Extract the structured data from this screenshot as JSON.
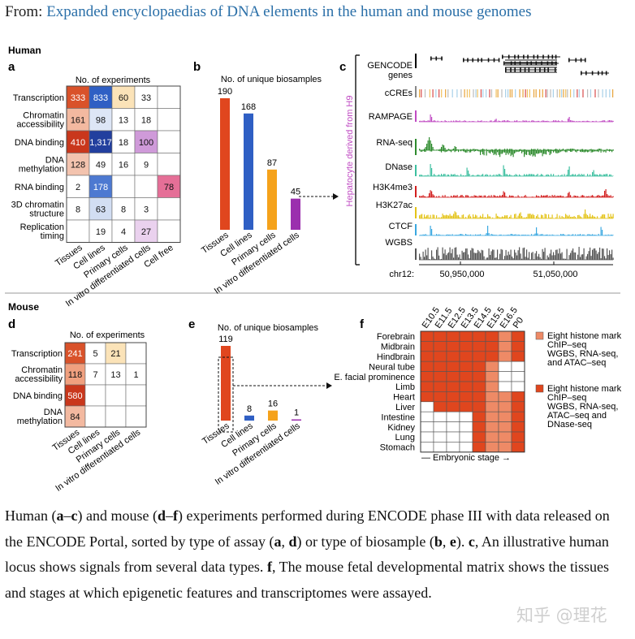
{
  "header": {
    "prefix": "From: ",
    "link_text": "Expanded encyclopaedias of DNA elements in the human and mouse genomes"
  },
  "sections": {
    "human": "Human",
    "mouse": "Mouse"
  },
  "panel_letters": {
    "a": "a",
    "b": "b",
    "c": "c",
    "d": "d",
    "e": "e",
    "f": "f"
  },
  "panel_a": {
    "title": "No. of experiments",
    "rows": [
      "Transcription",
      "Chromatin accessibility",
      "DNA binding",
      "DNA methylation",
      "RNA binding",
      "3D chromatin structure",
      "Replication timing"
    ],
    "cols": [
      "Tissues",
      "Cell lines",
      "Primary cells",
      "In vitro differentiated cells",
      "Cell free"
    ],
    "cells": [
      [
        "333",
        "833",
        "60",
        "33",
        ""
      ],
      [
        "161",
        "98",
        "13",
        "18",
        ""
      ],
      [
        "410",
        "1,317",
        "18",
        "100",
        ""
      ],
      [
        "128",
        "49",
        "16",
        "9",
        ""
      ],
      [
        "2",
        "178",
        "",
        "",
        "78"
      ],
      [
        "8",
        "63",
        "8",
        "3",
        ""
      ],
      [
        "",
        "19",
        "4",
        "27",
        ""
      ]
    ],
    "colors": [
      [
        "#d9522a",
        "#2f5fc4",
        "#fbe3b8",
        "#ffffff",
        "#ffffff"
      ],
      [
        "#f3b9a0",
        "#dde6f6",
        "#ffffff",
        "#ffffff",
        "#ffffff"
      ],
      [
        "#c9371c",
        "#223f9e",
        "#ffffff",
        "#cf9ad9",
        "#ffffff"
      ],
      [
        "#f3c3ae",
        "#ffffff",
        "#ffffff",
        "#ffffff",
        "#ffffff"
      ],
      [
        "#ffffff",
        "#4d79d1",
        "#ffffff",
        "#ffffff",
        "#e56f97"
      ],
      [
        "#ffffff",
        "#d2def3",
        "#ffffff",
        "#ffffff",
        "#ffffff"
      ],
      [
        "#ffffff",
        "#ffffff",
        "#ffffff",
        "#ead1ee",
        "#ffffff"
      ]
    ]
  },
  "panel_b": {
    "chart_data": {
      "type": "bar",
      "title": "No. of unique biosamples",
      "categories": [
        "Tissues",
        "Cell lines",
        "Primary cells",
        "In vitro differentiated cells"
      ],
      "values": [
        190,
        168,
        87,
        45
      ],
      "colors": [
        "#e0461e",
        "#2f5fc4",
        "#f5a21b",
        "#9b2fae"
      ],
      "ylim": [
        0,
        190
      ]
    }
  },
  "panel_c": {
    "track_labels": [
      "GENCODE genes",
      "cCREs",
      "RAMPAGE",
      "RNA-seq",
      "DNase",
      "H3K4me3",
      "H3K27ac",
      "CTCF",
      "WGBS"
    ],
    "track_colors": [
      "#000000",
      "#888888",
      "#c04bc3",
      "#2e8b2e",
      "#3cbf9f",
      "#d21f1f",
      "#e3c318",
      "#3aa8e0",
      "#555555"
    ],
    "side_label": "Hepatocyte derived from H9",
    "side_label_color": "#c04bc3",
    "axis_label": "chr12:",
    "ticks": [
      "50,950,000",
      "51,050,000"
    ]
  },
  "panel_d": {
    "title": "No. of experiments",
    "rows": [
      "Transcription",
      "Chromatin accessibility",
      "DNA binding",
      "DNA methylation"
    ],
    "cols": [
      "Tissues",
      "Cell lines",
      "Primary cells",
      "In vitro differentiated cells"
    ],
    "cells": [
      [
        "241",
        "5",
        "21",
        ""
      ],
      [
        "118",
        "7",
        "13",
        "1"
      ],
      [
        "580",
        "",
        "",
        ""
      ],
      [
        "84",
        "",
        "",
        ""
      ]
    ],
    "colors": [
      [
        "#d9522a",
        "#ffffff",
        "#fbe3b8",
        "#ffffff"
      ],
      [
        "#f0a07f",
        "#ffffff",
        "#ffffff",
        "#ffffff"
      ],
      [
        "#c9371c",
        "#ffffff",
        "#ffffff",
        "#ffffff"
      ],
      [
        "#f3b9a0",
        "#ffffff",
        "#ffffff",
        "#ffffff"
      ]
    ]
  },
  "panel_e": {
    "chart_data": {
      "type": "bar",
      "title": "No. of unique biosamples",
      "categories": [
        "Tissues",
        "Cell lines",
        "Primary cells",
        "In vitro differentiated cells"
      ],
      "values": [
        119,
        8,
        16,
        1
      ],
      "colors": [
        "#e0461e",
        "#2f5fc4",
        "#f5a21b",
        "#9b2fae"
      ],
      "ylim": [
        0,
        119
      ]
    }
  },
  "panel_f": {
    "stages": [
      "E10.5",
      "E11.5",
      "E12.5",
      "E13.5",
      "E14.5",
      "E15.5",
      "E16.5",
      "P0"
    ],
    "tissues": [
      "Forebrain",
      "Midbrain",
      "Hindbrain",
      "Neural tube",
      "E. facial prominence",
      "Limb",
      "Heart",
      "Liver",
      "Intestine",
      "Kidney",
      "Lung",
      "Stomach"
    ],
    "matrix": [
      [
        2,
        2,
        2,
        2,
        2,
        2,
        1,
        2
      ],
      [
        2,
        2,
        2,
        2,
        2,
        2,
        1,
        2
      ],
      [
        2,
        2,
        2,
        2,
        2,
        2,
        1,
        2
      ],
      [
        2,
        2,
        2,
        2,
        2,
        1,
        0,
        0
      ],
      [
        2,
        2,
        2,
        2,
        2,
        1,
        0,
        0
      ],
      [
        2,
        2,
        2,
        2,
        2,
        1,
        0,
        0
      ],
      [
        2,
        2,
        2,
        2,
        2,
        1,
        1,
        2
      ],
      [
        0,
        2,
        2,
        2,
        2,
        1,
        1,
        2
      ],
      [
        0,
        0,
        0,
        0,
        2,
        1,
        1,
        2
      ],
      [
        0,
        0,
        0,
        0,
        2,
        1,
        1,
        2
      ],
      [
        0,
        0,
        0,
        0,
        2,
        1,
        1,
        2
      ],
      [
        0,
        0,
        0,
        0,
        2,
        1,
        1,
        2
      ]
    ],
    "level_colors": [
      "#ffffff",
      "#ee8a66",
      "#e0461e"
    ],
    "legend": [
      {
        "color": "#ee8a66",
        "lines": [
          "Eight histone mark",
          "ChIP–seq",
          "WGBS, RNA-seq,",
          "and ATAC–seq"
        ]
      },
      {
        "color": "#e0461e",
        "lines": [
          "Eight histone mark",
          "ChIP–seq",
          "WGBS, RNA-seq,",
          "ATAC–seq and",
          "DNase-seq"
        ]
      }
    ],
    "axis_label": "— Embryonic stage →"
  },
  "caption": {
    "t1": "Human (",
    "b1": "a",
    "t2": "–",
    "b2": "c",
    "t3": ") and mouse (",
    "b3": "d",
    "t4": "–",
    "b4": "f",
    "t5": ") experiments performed during ENCODE phase III with data released on the ENCODE Portal, sorted by type of assay (",
    "b5": "a",
    "t6": ", ",
    "b6": "d",
    "t7": ") or type of biosample (",
    "b7": "b",
    "t8": ", ",
    "b8": "e",
    "t9": "). ",
    "b9": "c",
    "t10": ", An illustrative human locus shows signals from several data types. ",
    "b10": "f",
    "t11": ", The mouse fetal developmental matrix shows the tissues and stages at which epigenetic features and transcriptomes were assayed."
  },
  "watermark": "知乎 @理花"
}
